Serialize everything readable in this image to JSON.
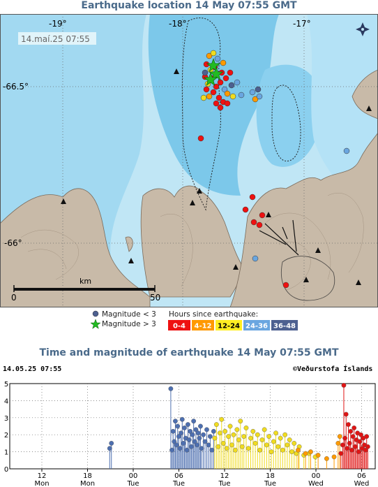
{
  "map": {
    "title": "Earthquake location   14 May 07:55 GMT",
    "timestamp_label": "14.maí.25  07:55",
    "lon_labels": [
      "-19°",
      "-18°",
      "-17°"
    ],
    "lat_labels": [
      "-66.5°",
      "-66°"
    ],
    "scale": {
      "unit": "km",
      "start": "0",
      "end": "50"
    },
    "colors": {
      "sea_deep": "#bfe6f4",
      "sea_shelf": "#8dd0ee",
      "land": "#c8baa8",
      "grid": "#6a6a6a"
    }
  },
  "legend": {
    "mag_small": "Magnitude < 3",
    "mag_large": "Magnitude > 3",
    "hours_title": "Hours since earthquake:",
    "bins": [
      {
        "label": "0-4",
        "color": "#ee1111",
        "text": "#ffffff"
      },
      {
        "label": "4-12",
        "color": "#ff9900",
        "text": "#ffffff"
      },
      {
        "label": "12-24",
        "color": "#ffee22",
        "text": "#000000"
      },
      {
        "label": "24-36",
        "color": "#6aa6e0",
        "text": "#ffffff"
      },
      {
        "label": "36-48",
        "color": "#4d6090",
        "text": "#ffffff"
      }
    ]
  },
  "chart_data": {
    "type": "scatter",
    "title": "Time and magnitude of earthquake   14 May 07:55 GMT",
    "date_label": "14.05.25 07:55",
    "credit": "©Veðurstofa Íslands",
    "xlabel": "",
    "ylabel": "",
    "ylim": [
      0,
      5
    ],
    "yticks": [
      "0",
      "1",
      "2",
      "3",
      "4",
      "5"
    ],
    "xticks": [
      {
        "hour": "12",
        "day": "Mon"
      },
      {
        "hour": "18",
        "day": "Mon"
      },
      {
        "hour": "00",
        "day": "Tue"
      },
      {
        "hour": "06",
        "day": "Tue"
      },
      {
        "hour": "12",
        "day": "Tue"
      },
      {
        "hour": "18",
        "day": "Tue"
      },
      {
        "hour": "00",
        "day": "Wed"
      },
      {
        "hour": "06",
        "day": "Wed"
      }
    ],
    "series": [
      {
        "color": "#4d6fb0",
        "points": [
          [
            17.5,
            1.2
          ],
          [
            17.8,
            1.5
          ],
          [
            28.2,
            4.7
          ],
          [
            28.4,
            1.1
          ],
          [
            28.6,
            2.2
          ],
          [
            28.8,
            1.6
          ],
          [
            29.0,
            2.8
          ],
          [
            29.2,
            1.4
          ],
          [
            29.4,
            2.5
          ],
          [
            29.6,
            1.9
          ],
          [
            29.8,
            1.2
          ],
          [
            30.0,
            2.1
          ],
          [
            30.2,
            2.9
          ],
          [
            30.4,
            1.5
          ],
          [
            30.6,
            2.4
          ],
          [
            30.8,
            1.8
          ],
          [
            31.0,
            1.1
          ],
          [
            31.2,
            2.6
          ],
          [
            31.4,
            1.7
          ],
          [
            31.6,
            2.2
          ],
          [
            31.8,
            1.3
          ],
          [
            32.0,
            2.0
          ],
          [
            32.2,
            2.8
          ],
          [
            32.4,
            1.6
          ],
          [
            32.6,
            2.3
          ],
          [
            32.8,
            1.4
          ],
          [
            33.0,
            2.1
          ],
          [
            33.2,
            1.8
          ],
          [
            33.4,
            2.5
          ],
          [
            33.6,
            1.2
          ],
          [
            33.9,
            2.0
          ],
          [
            34.2,
            1.6
          ],
          [
            34.5,
            2.3
          ],
          [
            34.8,
            1.4
          ],
          [
            35.1,
            1.9
          ],
          [
            35.4,
            1.1
          ],
          [
            35.7,
            2.2
          ]
        ]
      },
      {
        "color": "#f0dc20",
        "points": [
          [
            35.9,
            1.8
          ],
          [
            36.2,
            2.6
          ],
          [
            36.5,
            1.3
          ],
          [
            36.8,
            2.1
          ],
          [
            37.1,
            2.9
          ],
          [
            37.4,
            1.5
          ],
          [
            37.7,
            2.2
          ],
          [
            38.0,
            1.2
          ],
          [
            38.3,
            1.9
          ],
          [
            38.6,
            2.5
          ],
          [
            38.9,
            1.4
          ],
          [
            39.2,
            2.0
          ],
          [
            39.5,
            1.1
          ],
          [
            39.8,
            2.3
          ],
          [
            40.1,
            1.7
          ],
          [
            40.4,
            2.8
          ],
          [
            40.7,
            1.3
          ],
          [
            41.0,
            1.9
          ],
          [
            41.4,
            2.4
          ],
          [
            41.8,
            1.2
          ],
          [
            42.2,
            1.8
          ],
          [
            42.6,
            2.2
          ],
          [
            43.0,
            1.5
          ],
          [
            43.4,
            2.0
          ],
          [
            43.8,
            1.1
          ],
          [
            44.2,
            1.7
          ],
          [
            44.6,
            2.3
          ],
          [
            45.0,
            1.4
          ],
          [
            45.4,
            1.9
          ],
          [
            45.8,
            1.0
          ],
          [
            46.2,
            1.6
          ],
          [
            46.6,
            2.1
          ],
          [
            47.0,
            1.3
          ],
          [
            47.4,
            1.8
          ],
          [
            47.8,
            1.1
          ],
          [
            48.2,
            2.0
          ],
          [
            48.6,
            1.4
          ],
          [
            49.0,
            1.7
          ],
          [
            49.4,
            1.0
          ],
          [
            49.8,
            1.5
          ],
          [
            50.2,
            0.9
          ],
          [
            50.7,
            1.3
          ],
          [
            51.5,
            0.8
          ],
          [
            52.4,
            0.9
          ],
          [
            53.5,
            0.7
          ]
        ]
      },
      {
        "color": "#ff9a00",
        "points": [
          [
            50.5,
            1.1
          ],
          [
            51.8,
            0.9
          ],
          [
            52.7,
            1.0
          ],
          [
            54.0,
            0.8
          ],
          [
            55.5,
            0.6
          ],
          [
            56.8,
            0.7
          ],
          [
            57.5,
            1.5
          ],
          [
            57.8,
            1.9
          ]
        ]
      },
      {
        "color": "#e01414",
        "points": [
          [
            58.0,
            0.9
          ],
          [
            58.3,
            1.4
          ],
          [
            58.5,
            4.9
          ],
          [
            58.7,
            1.8
          ],
          [
            58.9,
            3.2
          ],
          [
            59.1,
            1.2
          ],
          [
            59.3,
            2.6
          ],
          [
            59.5,
            1.5
          ],
          [
            59.7,
            2.2
          ],
          [
            59.9,
            1.1
          ],
          [
            60.1,
            1.9
          ],
          [
            60.3,
            2.4
          ],
          [
            60.5,
            1.3
          ],
          [
            60.7,
            1.7
          ],
          [
            60.9,
            2.1
          ],
          [
            61.1,
            1.0
          ],
          [
            61.3,
            1.6
          ],
          [
            61.5,
            2.0
          ],
          [
            61.7,
            1.2
          ],
          [
            61.9,
            1.8
          ],
          [
            62.1,
            1.4
          ],
          [
            62.3,
            1.1
          ],
          [
            62.5,
            1.9
          ],
          [
            62.7,
            1.3
          ]
        ]
      }
    ]
  }
}
